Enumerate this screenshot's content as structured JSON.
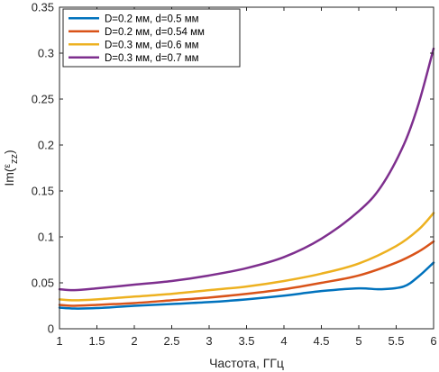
{
  "chart_data": {
    "type": "line",
    "xlabel": "Частота, ГГц",
    "ylabel": {
      "base": "Im(",
      "eps": "ε",
      "sub": "zz",
      "close": ")"
    },
    "xlim": [
      1,
      6
    ],
    "ylim": [
      0,
      0.35
    ],
    "xticks": [
      "1",
      "1.5",
      "2",
      "2.5",
      "3",
      "3.5",
      "4",
      "4.5",
      "5",
      "5.5",
      "6"
    ],
    "yticks": [
      "0",
      "0.05",
      "0.1",
      "0.15",
      "0.2",
      "0.25",
      "0.3",
      "0.35"
    ],
    "grid": false,
    "legend_position": "top-left",
    "series": [
      {
        "name": "D=0.2 мм, d=0.5 мм",
        "color": "#0072BD",
        "x": [
          1.0,
          1.2,
          1.5,
          2.0,
          2.5,
          3.0,
          3.5,
          4.0,
          4.5,
          5.0,
          5.3,
          5.6,
          5.8,
          6.0
        ],
        "y": [
          0.023,
          0.022,
          0.0225,
          0.025,
          0.027,
          0.029,
          0.032,
          0.036,
          0.041,
          0.044,
          0.043,
          0.046,
          0.057,
          0.072
        ]
      },
      {
        "name": "D=0.2 мм, d=0.54 мм",
        "color": "#D95319",
        "x": [
          1.0,
          1.2,
          1.5,
          2.0,
          2.5,
          3.0,
          3.5,
          4.0,
          4.5,
          5.0,
          5.5,
          5.8,
          6.0
        ],
        "y": [
          0.026,
          0.025,
          0.026,
          0.028,
          0.031,
          0.034,
          0.038,
          0.043,
          0.05,
          0.058,
          0.072,
          0.084,
          0.095
        ]
      },
      {
        "name": "D=0.3 мм, d=0.6 мм",
        "color": "#EDB120",
        "x": [
          1.0,
          1.2,
          1.5,
          2.0,
          2.5,
          3.0,
          3.5,
          4.0,
          4.5,
          5.0,
          5.5,
          5.8,
          6.0
        ],
        "y": [
          0.032,
          0.031,
          0.032,
          0.035,
          0.038,
          0.042,
          0.046,
          0.052,
          0.06,
          0.071,
          0.09,
          0.108,
          0.126
        ]
      },
      {
        "name": "D=0.3 мм, d=0.7 мм",
        "color": "#7E2F8E",
        "x": [
          1.0,
          1.2,
          1.5,
          2.0,
          2.5,
          3.0,
          3.5,
          4.0,
          4.5,
          5.0,
          5.3,
          5.6,
          5.8,
          6.0
        ],
        "y": [
          0.043,
          0.042,
          0.044,
          0.048,
          0.052,
          0.058,
          0.066,
          0.078,
          0.098,
          0.128,
          0.155,
          0.2,
          0.245,
          0.305
        ]
      }
    ]
  }
}
